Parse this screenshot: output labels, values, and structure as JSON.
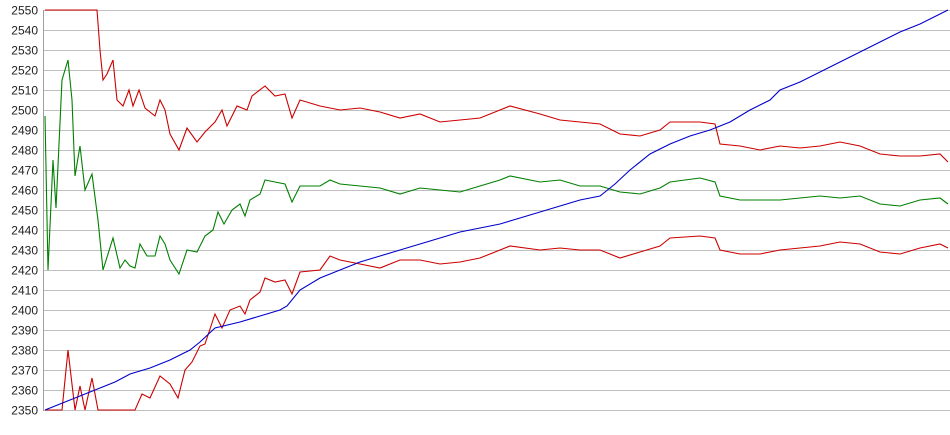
{
  "chart_data": {
    "type": "line",
    "title": "",
    "xlabel": "",
    "ylabel": "",
    "ylim": [
      2350,
      2550
    ],
    "xlim": [
      0,
      903
    ],
    "yticks": [
      2350,
      2360,
      2370,
      2380,
      2390,
      2400,
      2410,
      2420,
      2430,
      2440,
      2450,
      2460,
      2470,
      2480,
      2490,
      2500,
      2510,
      2520,
      2530,
      2540,
      2550
    ],
    "grid": "horizontal",
    "legend": "none",
    "series": [
      {
        "color": "#cc0000",
        "points": [
          [
            0,
            2550
          ],
          [
            52,
            2550
          ],
          [
            55,
            2530
          ],
          [
            58,
            2515
          ],
          [
            62,
            2518
          ],
          [
            68,
            2525
          ],
          [
            72,
            2505
          ],
          [
            78,
            2502
          ],
          [
            84,
            2510
          ],
          [
            88,
            2502
          ],
          [
            94,
            2510
          ],
          [
            100,
            2501
          ],
          [
            110,
            2497
          ],
          [
            115,
            2505
          ],
          [
            120,
            2500
          ],
          [
            125,
            2488
          ],
          [
            134,
            2480
          ],
          [
            142,
            2491
          ],
          [
            152,
            2484
          ],
          [
            160,
            2489
          ],
          [
            170,
            2494
          ],
          [
            177,
            2500
          ],
          [
            182,
            2492
          ],
          [
            192,
            2502
          ],
          [
            202,
            2500
          ],
          [
            207,
            2507
          ],
          [
            220,
            2512
          ],
          [
            230,
            2507
          ],
          [
            240,
            2508
          ],
          [
            247,
            2496
          ],
          [
            255,
            2505
          ],
          [
            275,
            2502
          ],
          [
            295,
            2500
          ],
          [
            315,
            2501
          ],
          [
            335,
            2499
          ],
          [
            355,
            2496
          ],
          [
            375,
            2498
          ],
          [
            395,
            2494
          ],
          [
            415,
            2495
          ],
          [
            435,
            2496
          ],
          [
            455,
            2500
          ],
          [
            465,
            2502
          ],
          [
            495,
            2498
          ],
          [
            515,
            2495
          ],
          [
            535,
            2494
          ],
          [
            555,
            2493
          ],
          [
            575,
            2488
          ],
          [
            595,
            2487
          ],
          [
            615,
            2490
          ],
          [
            625,
            2494
          ],
          [
            655,
            2494
          ],
          [
            670,
            2493
          ],
          [
            675,
            2483
          ],
          [
            695,
            2482
          ],
          [
            715,
            2480
          ],
          [
            735,
            2482
          ],
          [
            755,
            2481
          ],
          [
            775,
            2482
          ],
          [
            795,
            2484
          ],
          [
            815,
            2482
          ],
          [
            835,
            2478
          ],
          [
            855,
            2477
          ],
          [
            875,
            2477
          ],
          [
            895,
            2478
          ],
          [
            903,
            2474
          ]
        ]
      },
      {
        "color": "#008000",
        "points": [
          [
            0,
            2497
          ],
          [
            3,
            2420
          ],
          [
            8,
            2475
          ],
          [
            11,
            2451
          ],
          [
            17,
            2515
          ],
          [
            23,
            2525
          ],
          [
            27,
            2505
          ],
          [
            30,
            2467
          ],
          [
            35,
            2482
          ],
          [
            40,
            2460
          ],
          [
            47,
            2468
          ],
          [
            53,
            2445
          ],
          [
            58,
            2420
          ],
          [
            68,
            2436
          ],
          [
            75,
            2421
          ],
          [
            80,
            2425
          ],
          [
            85,
            2422
          ],
          [
            90,
            2421
          ],
          [
            95,
            2433
          ],
          [
            102,
            2427
          ],
          [
            110,
            2427
          ],
          [
            115,
            2437
          ],
          [
            120,
            2433
          ],
          [
            125,
            2425
          ],
          [
            134,
            2418
          ],
          [
            142,
            2430
          ],
          [
            152,
            2429
          ],
          [
            160,
            2437
          ],
          [
            168,
            2440
          ],
          [
            173,
            2449
          ],
          [
            179,
            2443
          ],
          [
            187,
            2450
          ],
          [
            195,
            2453
          ],
          [
            200,
            2447
          ],
          [
            205,
            2455
          ],
          [
            215,
            2458
          ],
          [
            220,
            2465
          ],
          [
            230,
            2464
          ],
          [
            240,
            2463
          ],
          [
            247,
            2454
          ],
          [
            255,
            2462
          ],
          [
            275,
            2462
          ],
          [
            285,
            2465
          ],
          [
            295,
            2463
          ],
          [
            315,
            2462
          ],
          [
            335,
            2461
          ],
          [
            355,
            2458
          ],
          [
            375,
            2461
          ],
          [
            395,
            2460
          ],
          [
            415,
            2459
          ],
          [
            435,
            2462
          ],
          [
            455,
            2465
          ],
          [
            465,
            2467
          ],
          [
            495,
            2464
          ],
          [
            515,
            2465
          ],
          [
            535,
            2462
          ],
          [
            555,
            2462
          ],
          [
            575,
            2459
          ],
          [
            595,
            2458
          ],
          [
            615,
            2461
          ],
          [
            625,
            2464
          ],
          [
            655,
            2466
          ],
          [
            670,
            2464
          ],
          [
            675,
            2457
          ],
          [
            695,
            2455
          ],
          [
            715,
            2455
          ],
          [
            735,
            2455
          ],
          [
            755,
            2456
          ],
          [
            775,
            2457
          ],
          [
            795,
            2456
          ],
          [
            815,
            2457
          ],
          [
            835,
            2453
          ],
          [
            855,
            2452
          ],
          [
            875,
            2455
          ],
          [
            895,
            2456
          ],
          [
            903,
            2453
          ]
        ]
      },
      {
        "color": "#cc0000",
        "points": [
          [
            0,
            2350
          ],
          [
            17,
            2350
          ],
          [
            23,
            2380
          ],
          [
            30,
            2350
          ],
          [
            35,
            2362
          ],
          [
            40,
            2350
          ],
          [
            47,
            2366
          ],
          [
            53,
            2350
          ],
          [
            90,
            2350
          ],
          [
            97,
            2358
          ],
          [
            105,
            2356
          ],
          [
            115,
            2367
          ],
          [
            125,
            2363
          ],
          [
            133,
            2356
          ],
          [
            140,
            2370
          ],
          [
            147,
            2374
          ],
          [
            155,
            2382
          ],
          [
            160,
            2383
          ],
          [
            170,
            2398
          ],
          [
            177,
            2391
          ],
          [
            185,
            2400
          ],
          [
            195,
            2402
          ],
          [
            200,
            2398
          ],
          [
            205,
            2405
          ],
          [
            215,
            2409
          ],
          [
            220,
            2416
          ],
          [
            230,
            2414
          ],
          [
            240,
            2415
          ],
          [
            247,
            2408
          ],
          [
            255,
            2419
          ],
          [
            275,
            2420
          ],
          [
            285,
            2427
          ],
          [
            295,
            2425
          ],
          [
            315,
            2423
          ],
          [
            335,
            2421
          ],
          [
            355,
            2425
          ],
          [
            375,
            2425
          ],
          [
            395,
            2423
          ],
          [
            415,
            2424
          ],
          [
            435,
            2426
          ],
          [
            455,
            2430
          ],
          [
            465,
            2432
          ],
          [
            495,
            2430
          ],
          [
            515,
            2431
          ],
          [
            535,
            2430
          ],
          [
            555,
            2430
          ],
          [
            575,
            2426
          ],
          [
            595,
            2429
          ],
          [
            615,
            2432
          ],
          [
            625,
            2436
          ],
          [
            655,
            2437
          ],
          [
            670,
            2436
          ],
          [
            675,
            2430
          ],
          [
            695,
            2428
          ],
          [
            715,
            2428
          ],
          [
            735,
            2430
          ],
          [
            755,
            2431
          ],
          [
            775,
            2432
          ],
          [
            795,
            2434
          ],
          [
            815,
            2433
          ],
          [
            835,
            2429
          ],
          [
            855,
            2428
          ],
          [
            875,
            2431
          ],
          [
            895,
            2433
          ],
          [
            903,
            2431
          ]
        ]
      },
      {
        "color": "#0000cc",
        "points": [
          [
            0,
            2350
          ],
          [
            10,
            2352
          ],
          [
            20,
            2354
          ],
          [
            35,
            2357
          ],
          [
            55,
            2361
          ],
          [
            70,
            2364
          ],
          [
            85,
            2368
          ],
          [
            105,
            2371
          ],
          [
            125,
            2375
          ],
          [
            145,
            2380
          ],
          [
            155,
            2384
          ],
          [
            170,
            2391
          ],
          [
            195,
            2394
          ],
          [
            215,
            2397
          ],
          [
            235,
            2400
          ],
          [
            242,
            2402
          ],
          [
            255,
            2410
          ],
          [
            275,
            2416
          ],
          [
            295,
            2420
          ],
          [
            315,
            2424
          ],
          [
            335,
            2427
          ],
          [
            355,
            2430
          ],
          [
            375,
            2433
          ],
          [
            395,
            2436
          ],
          [
            415,
            2439
          ],
          [
            435,
            2441
          ],
          [
            455,
            2443
          ],
          [
            475,
            2446
          ],
          [
            495,
            2449
          ],
          [
            515,
            2452
          ],
          [
            535,
            2455
          ],
          [
            555,
            2457
          ],
          [
            570,
            2463
          ],
          [
            585,
            2470
          ],
          [
            605,
            2478
          ],
          [
            625,
            2483
          ],
          [
            645,
            2487
          ],
          [
            665,
            2490
          ],
          [
            685,
            2494
          ],
          [
            705,
            2500
          ],
          [
            725,
            2505
          ],
          [
            735,
            2510
          ],
          [
            755,
            2514
          ],
          [
            775,
            2519
          ],
          [
            795,
            2524
          ],
          [
            815,
            2529
          ],
          [
            835,
            2534
          ],
          [
            855,
            2539
          ],
          [
            875,
            2543
          ],
          [
            895,
            2548
          ],
          [
            903,
            2550
          ]
        ]
      }
    ]
  }
}
